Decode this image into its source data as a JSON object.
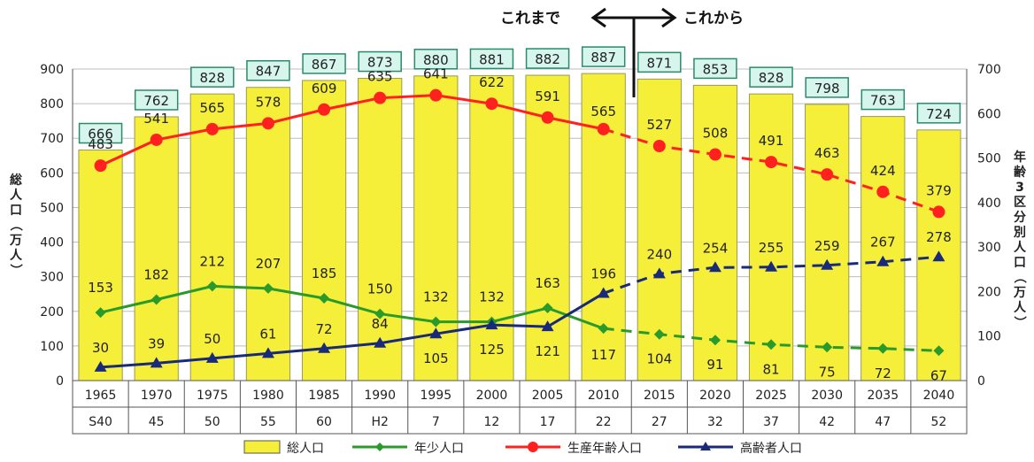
{
  "header": {
    "past_label": "これまで",
    "future_label": "これから"
  },
  "chart_data": {
    "type": "bar",
    "x_years": [
      "1965",
      "1970",
      "1975",
      "1980",
      "1985",
      "1990",
      "1995",
      "2000",
      "2005",
      "2010",
      "2015",
      "2020",
      "2025",
      "2030",
      "2035",
      "2040"
    ],
    "x_era": [
      "S40",
      "45",
      "50",
      "55",
      "60",
      "H2",
      "7",
      "12",
      "17",
      "22",
      "27",
      "32",
      "37",
      "42",
      "47",
      "52"
    ],
    "projection_start_index": 10,
    "left_axis": {
      "label": "総人口（万人）",
      "range": [
        0,
        900
      ],
      "ticks": [
        0,
        100,
        200,
        300,
        400,
        500,
        600,
        700,
        800,
        900
      ]
    },
    "right_axis": {
      "label": "年齢3区分別人口（万人）",
      "range": [
        0,
        700
      ],
      "ticks": [
        0,
        100,
        200,
        300,
        400,
        500,
        600,
        700
      ]
    },
    "bars": {
      "name": "総人口",
      "color": "#f5ef3a",
      "values": [
        666,
        762,
        828,
        847,
        867,
        873,
        880,
        881,
        882,
        887,
        871,
        853,
        828,
        798,
        763,
        724
      ]
    },
    "series": [
      {
        "name": "年少人口",
        "color": "#2a9a2a",
        "marker": "diamond",
        "values": [
          153,
          182,
          212,
          207,
          185,
          150,
          132,
          132,
          163,
          117,
          104,
          91,
          81,
          75,
          72,
          67
        ]
      },
      {
        "name": "生産年齢人口",
        "color": "#ff2020",
        "marker": "circle",
        "values": [
          483,
          541,
          565,
          578,
          609,
          635,
          641,
          622,
          591,
          565,
          527,
          508,
          491,
          463,
          424,
          379
        ]
      },
      {
        "name": "高齢者人口",
        "color": "#1a2a7a",
        "marker": "triangle",
        "values": [
          30,
          39,
          50,
          61,
          72,
          84,
          105,
          125,
          121,
          196,
          240,
          254,
          255,
          259,
          267,
          278
        ]
      }
    ],
    "grid": true,
    "legend_position": "bottom"
  }
}
